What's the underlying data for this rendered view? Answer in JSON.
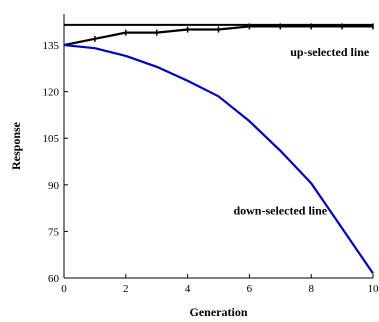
{
  "chart_data": {
    "type": "line",
    "xlabel": "Generation",
    "ylabel": "Response",
    "xlim": [
      0,
      10
    ],
    "ylim": [
      60,
      145
    ],
    "x_ticks": [
      0,
      2,
      4,
      6,
      8,
      10
    ],
    "y_ticks": [
      60,
      75,
      90,
      105,
      120,
      135
    ],
    "x_tick_labels": [
      "0",
      "2",
      "4",
      "6",
      "8",
      "10"
    ],
    "y_tick_labels": [
      "60",
      "75",
      "90",
      "105",
      "120",
      "135"
    ],
    "grid": false,
    "reference_line": {
      "y": 141.5,
      "color": "#000000"
    },
    "series": [
      {
        "color": "#000000",
        "marker": "tick",
        "x": [
          0,
          1,
          2,
          3,
          4,
          5,
          6,
          7,
          8,
          9,
          10
        ],
        "y": [
          135,
          137,
          139,
          139,
          140,
          140,
          141,
          141,
          141,
          141,
          141
        ]
      },
      {
        "color": "#0000cc",
        "marker": "none",
        "x": [
          0,
          1,
          2,
          3,
          4,
          5,
          6,
          7,
          8,
          9,
          10
        ],
        "y": [
          135,
          134,
          131.5,
          128,
          123.5,
          118.5,
          110.5,
          101,
          90.5,
          76,
          61.5
        ]
      }
    ],
    "annotations": [
      {
        "text": "up-selected line",
        "x": 8.6,
        "y": 131.5
      },
      {
        "text": "down-selected line",
        "x": 7.0,
        "y": 80.5
      }
    ]
  }
}
